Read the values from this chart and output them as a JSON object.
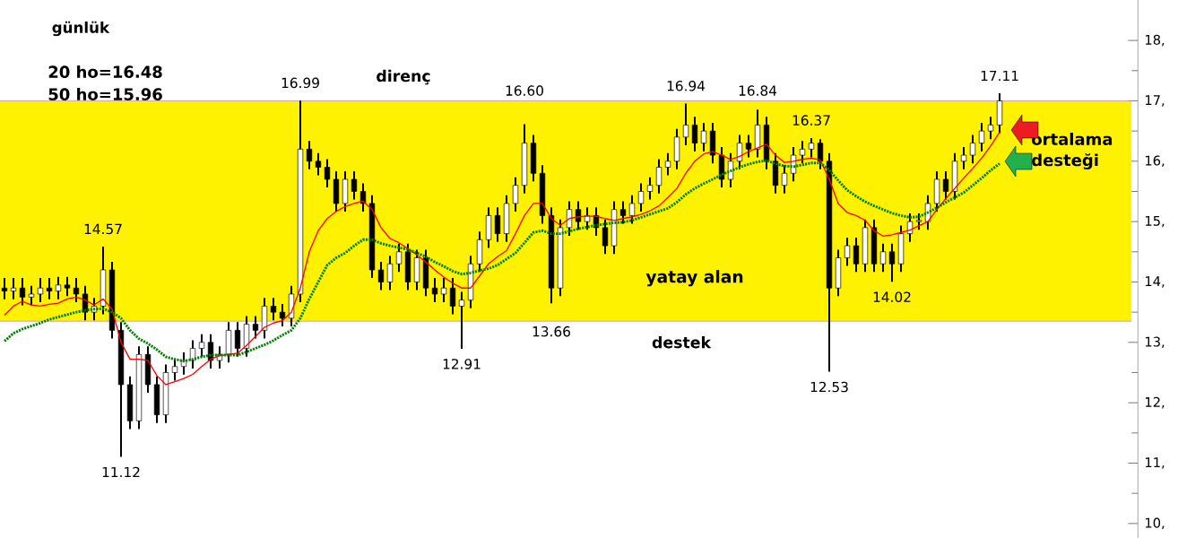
{
  "chart_data": {
    "type": "candlestick",
    "title": "günlük",
    "categories": [
      null,
      null,
      null,
      null,
      null,
      null,
      null,
      null,
      null,
      null,
      null,
      null,
      null,
      null,
      null,
      null,
      null,
      null,
      null,
      null,
      null,
      null,
      null,
      null,
      null,
      null,
      null,
      null,
      null,
      null,
      null,
      null,
      null,
      null,
      null,
      null,
      null,
      null,
      null,
      null,
      null,
      null,
      null,
      null,
      null,
      null,
      null,
      null,
      null,
      null,
      null,
      null,
      null,
      null,
      null,
      null,
      null,
      null,
      null,
      null,
      null,
      null,
      null,
      null,
      null,
      null,
      null,
      null,
      null,
      null,
      null,
      null,
      null,
      null,
      null,
      null,
      null,
      null,
      null,
      null,
      null,
      null,
      null,
      null,
      null,
      null,
      null,
      null,
      null,
      null,
      null,
      null,
      null,
      null,
      null,
      null,
      null,
      null,
      null,
      null,
      null,
      null,
      null,
      null,
      null,
      null,
      null,
      null,
      null,
      null,
      null,
      null
    ],
    "ohlc": [
      [
        13.9,
        14.05,
        13.73,
        13.85
      ],
      [
        13.85,
        14.05,
        13.73,
        13.9
      ],
      [
        13.9,
        14.05,
        13.63,
        13.75
      ],
      [
        13.75,
        13.92,
        13.63,
        13.8
      ],
      [
        13.8,
        14.05,
        13.68,
        13.9
      ],
      [
        13.9,
        14.05,
        13.73,
        13.85
      ],
      [
        13.85,
        14.07,
        13.73,
        13.95
      ],
      [
        13.95,
        14.07,
        13.78,
        13.9
      ],
      [
        13.9,
        14.05,
        13.68,
        13.8
      ],
      [
        13.8,
        13.92,
        13.38,
        13.5
      ],
      [
        13.5,
        13.72,
        13.38,
        13.6
      ],
      [
        13.6,
        14.57,
        13.48,
        14.2
      ],
      [
        14.2,
        14.32,
        13.08,
        13.2
      ],
      [
        13.2,
        13.32,
        11.12,
        12.3
      ],
      [
        12.3,
        12.42,
        11.58,
        11.7
      ],
      [
        11.7,
        12.92,
        11.58,
        12.8
      ],
      [
        12.8,
        12.92,
        12.18,
        12.3
      ],
      [
        12.3,
        12.42,
        11.68,
        11.8
      ],
      [
        11.8,
        12.62,
        11.68,
        12.5
      ],
      [
        12.5,
        12.72,
        12.38,
        12.6
      ],
      [
        12.6,
        12.82,
        12.48,
        12.7
      ],
      [
        12.7,
        13.02,
        12.58,
        12.9
      ],
      [
        12.9,
        13.12,
        12.78,
        13.0
      ],
      [
        13.0,
        13.12,
        12.58,
        12.7
      ],
      [
        12.7,
        12.92,
        12.58,
        12.8
      ],
      [
        12.8,
        13.32,
        12.68,
        13.2
      ],
      [
        13.2,
        13.32,
        12.78,
        12.9
      ],
      [
        12.9,
        13.42,
        12.78,
        13.3
      ],
      [
        13.3,
        13.42,
        13.08,
        13.2
      ],
      [
        13.2,
        13.72,
        13.08,
        13.6
      ],
      [
        13.6,
        13.72,
        13.38,
        13.5
      ],
      [
        13.5,
        13.62,
        13.28,
        13.4
      ],
      [
        13.4,
        13.92,
        13.28,
        13.8
      ],
      [
        13.8,
        16.99,
        13.68,
        16.2
      ],
      [
        16.2,
        16.32,
        15.88,
        16.0
      ],
      [
        16.0,
        16.12,
        15.78,
        15.9
      ],
      [
        15.9,
        16.02,
        15.58,
        15.7
      ],
      [
        15.7,
        15.82,
        15.18,
        15.3
      ],
      [
        15.3,
        15.82,
        15.18,
        15.7
      ],
      [
        15.7,
        15.82,
        15.38,
        15.5
      ],
      [
        15.5,
        15.62,
        15.18,
        15.3
      ],
      [
        15.3,
        15.42,
        14.08,
        14.2
      ],
      [
        14.2,
        14.32,
        13.88,
        14.0
      ],
      [
        14.0,
        14.42,
        13.88,
        14.3
      ],
      [
        14.3,
        14.62,
        14.18,
        14.5
      ],
      [
        14.5,
        14.62,
        13.88,
        14.0
      ],
      [
        14.0,
        14.52,
        13.88,
        14.4
      ],
      [
        14.4,
        14.52,
        13.78,
        13.9
      ],
      [
        13.9,
        14.05,
        13.68,
        13.8
      ],
      [
        13.8,
        14.05,
        13.68,
        13.9
      ],
      [
        13.9,
        14.05,
        13.48,
        13.6
      ],
      [
        13.6,
        13.82,
        12.91,
        13.7
      ],
      [
        13.7,
        14.42,
        13.58,
        14.3
      ],
      [
        14.3,
        14.82,
        14.18,
        14.7
      ],
      [
        14.7,
        15.22,
        14.58,
        15.1
      ],
      [
        15.1,
        15.22,
        14.68,
        14.8
      ],
      [
        14.8,
        15.42,
        14.68,
        15.3
      ],
      [
        15.3,
        15.72,
        15.18,
        15.6
      ],
      [
        15.6,
        16.6,
        15.48,
        16.3
      ],
      [
        16.3,
        16.42,
        15.68,
        15.8
      ],
      [
        15.8,
        15.92,
        14.98,
        15.1
      ],
      [
        15.1,
        15.22,
        13.66,
        13.9
      ],
      [
        13.9,
        15.02,
        13.78,
        14.9
      ],
      [
        14.9,
        15.32,
        14.78,
        15.2
      ],
      [
        15.2,
        15.32,
        14.88,
        15.0
      ],
      [
        15.0,
        15.22,
        14.88,
        15.1
      ],
      [
        15.1,
        15.22,
        14.78,
        14.9
      ],
      [
        14.9,
        15.02,
        14.48,
        14.6
      ],
      [
        14.6,
        15.32,
        14.48,
        15.2
      ],
      [
        15.2,
        15.32,
        14.98,
        15.1
      ],
      [
        15.1,
        15.42,
        14.98,
        15.3
      ],
      [
        15.3,
        15.62,
        15.18,
        15.5
      ],
      [
        15.5,
        15.72,
        15.38,
        15.6
      ],
      [
        15.6,
        16.02,
        15.48,
        15.9
      ],
      [
        15.9,
        16.12,
        15.78,
        16.0
      ],
      [
        16.0,
        16.52,
        15.88,
        16.4
      ],
      [
        16.4,
        16.94,
        16.28,
        16.6
      ],
      [
        16.6,
        16.72,
        16.18,
        16.3
      ],
      [
        16.3,
        16.62,
        16.18,
        16.5
      ],
      [
        16.5,
        16.62,
        15.98,
        16.1
      ],
      [
        16.1,
        16.22,
        15.58,
        15.7
      ],
      [
        15.7,
        16.12,
        15.58,
        16.0
      ],
      [
        16.0,
        16.42,
        15.88,
        16.3
      ],
      [
        16.3,
        16.42,
        16.08,
        16.2
      ],
      [
        16.2,
        16.84,
        16.08,
        16.6
      ],
      [
        16.6,
        16.72,
        15.88,
        16.0
      ],
      [
        16.0,
        16.12,
        15.48,
        15.6
      ],
      [
        15.6,
        15.92,
        15.48,
        15.8
      ],
      [
        15.8,
        16.22,
        15.68,
        16.1
      ],
      [
        16.1,
        16.32,
        15.98,
        16.2
      ],
      [
        16.2,
        16.37,
        16.08,
        16.3
      ],
      [
        16.3,
        16.35,
        15.88,
        16.0
      ],
      [
        16.0,
        16.12,
        12.53,
        13.9
      ],
      [
        13.9,
        14.52,
        13.78,
        14.4
      ],
      [
        14.4,
        14.72,
        14.28,
        14.6
      ],
      [
        14.6,
        14.72,
        14.18,
        14.3
      ],
      [
        14.3,
        15.02,
        14.18,
        14.9
      ],
      [
        14.9,
        15.02,
        14.18,
        14.3
      ],
      [
        14.3,
        14.62,
        14.18,
        14.5
      ],
      [
        14.5,
        14.62,
        14.02,
        14.3
      ],
      [
        14.3,
        14.92,
        14.18,
        14.8
      ],
      [
        14.8,
        15.12,
        14.68,
        15.0
      ],
      [
        15.0,
        15.12,
        14.88,
        15.0
      ],
      [
        15.0,
        15.42,
        14.88,
        15.3
      ],
      [
        15.3,
        15.82,
        15.18,
        15.7
      ],
      [
        15.7,
        15.82,
        15.38,
        15.5
      ],
      [
        15.5,
        16.12,
        15.38,
        16.0
      ],
      [
        16.0,
        16.22,
        15.88,
        16.1
      ],
      [
        16.1,
        16.42,
        15.98,
        16.3
      ],
      [
        16.3,
        16.62,
        16.18,
        16.5
      ],
      [
        16.5,
        16.72,
        16.38,
        16.6
      ],
      [
        16.6,
        17.11,
        16.48,
        17.0
      ]
    ],
    "series": [
      {
        "type": "line",
        "color": "#ff0000",
        "values": [
          13.45,
          13.6,
          13.68,
          13.62,
          13.6,
          13.63,
          13.65,
          13.72,
          13.75,
          13.7,
          13.62,
          13.72,
          13.55,
          13.0,
          12.72,
          12.72,
          12.7,
          12.45,
          12.3,
          12.35,
          12.4,
          12.47,
          12.6,
          12.72,
          12.78,
          12.8,
          12.82,
          12.95,
          13.1,
          13.25,
          13.32,
          13.36,
          13.5,
          13.9,
          14.5,
          14.85,
          15.05,
          15.17,
          15.25,
          15.3,
          15.34,
          15.2,
          14.9,
          14.72,
          14.65,
          14.55,
          14.45,
          14.33,
          14.2,
          14.08,
          13.98,
          13.9,
          13.9,
          14.1,
          14.3,
          14.42,
          14.52,
          14.8,
          15.1,
          15.3,
          15.3,
          15.05,
          14.94,
          15.05,
          15.08,
          15.09,
          15.09,
          15.05,
          15.02,
          15.05,
          15.08,
          15.12,
          15.18,
          15.26,
          15.4,
          15.55,
          15.8,
          16.0,
          16.12,
          16.16,
          16.1,
          16.03,
          16.08,
          16.16,
          16.22,
          16.28,
          16.1,
          15.98,
          16.0,
          16.03,
          16.05,
          16.02,
          15.7,
          15.3,
          15.15,
          15.1,
          15.02,
          14.85,
          14.76,
          14.78,
          14.82,
          14.86,
          14.93,
          15.0,
          15.2,
          15.38,
          15.55,
          15.72,
          15.88,
          16.05,
          16.25,
          16.48
        ]
      },
      {
        "type": "line",
        "color": "#008000",
        "line_style": "dotted",
        "values": [
          13.02,
          13.15,
          13.22,
          13.27,
          13.32,
          13.38,
          13.42,
          13.46,
          13.5,
          13.53,
          13.55,
          13.56,
          13.5,
          13.4,
          13.2,
          13.06,
          12.98,
          12.88,
          12.76,
          12.72,
          12.69,
          12.72,
          12.76,
          12.79,
          12.79,
          12.79,
          12.79,
          12.84,
          12.9,
          12.96,
          13.03,
          13.12,
          13.2,
          13.4,
          13.72,
          14.0,
          14.28,
          14.4,
          14.48,
          14.6,
          14.7,
          14.7,
          14.64,
          14.6,
          14.57,
          14.54,
          14.48,
          14.42,
          14.33,
          14.26,
          14.18,
          14.13,
          14.15,
          14.19,
          14.22,
          14.28,
          14.38,
          14.48,
          14.65,
          14.82,
          14.85,
          14.8,
          14.8,
          14.84,
          14.88,
          14.91,
          14.94,
          14.96,
          14.98,
          14.99,
          15.02,
          15.07,
          15.12,
          15.17,
          15.22,
          15.32,
          15.45,
          15.55,
          15.63,
          15.7,
          15.78,
          15.84,
          15.9,
          15.95,
          15.99,
          16.01,
          15.96,
          15.92,
          15.91,
          15.94,
          15.97,
          15.97,
          15.85,
          15.68,
          15.52,
          15.42,
          15.33,
          15.26,
          15.2,
          15.14,
          15.1,
          15.07,
          15.08,
          15.15,
          15.23,
          15.32,
          15.4,
          15.48,
          15.6,
          15.72,
          15.85,
          15.96
        ]
      }
    ],
    "ylim": [
      9.76,
      18.67
    ],
    "yticks": [
      {
        "value": 10,
        "label": "10,"
      },
      {
        "value": 11,
        "label": "11,"
      },
      {
        "value": 12,
        "label": "12,"
      },
      {
        "value": 13,
        "label": "13,"
      },
      {
        "value": 14,
        "label": "14,"
      },
      {
        "value": 15,
        "label": "15,"
      },
      {
        "value": 16,
        "label": "16,"
      },
      {
        "value": 17,
        "label": "17,"
      },
      {
        "value": 18,
        "label": "18,"
      }
    ],
    "tick_labels": "y",
    "bands": [
      {
        "axis": "y",
        "from": 13.35,
        "to": 17.0,
        "label": "yatay alan",
        "color": "#fff200"
      }
    ],
    "ref_lines": [
      {
        "axis": "y",
        "value": 17.0,
        "label": "direnç",
        "color": "#a060c0"
      },
      {
        "axis": "y",
        "value": 13.35,
        "label": "destek",
        "color": "#a060c0"
      }
    ],
    "annotations": [
      "20 ho=16.48",
      "50 ho=15.96",
      "ortalama",
      "desteği",
      {
        "text": "14.57",
        "y": 14.57
      },
      {
        "text": "11.12",
        "y": 11.12
      },
      {
        "text": "16.99",
        "y": 16.99
      },
      {
        "text": "12.91",
        "y": 12.91
      },
      {
        "text": "16.60",
        "y": 16.6
      },
      {
        "text": "13.66",
        "y": 13.66
      },
      {
        "text": "16.94",
        "y": 16.94
      },
      {
        "text": "16.84",
        "y": 16.84
      },
      {
        "text": "16.37",
        "y": 16.37
      },
      {
        "text": "12.53",
        "y": 12.53
      },
      {
        "text": "14.02",
        "y": 14.02
      },
      {
        "text": "17.11",
        "y": 17.11
      }
    ]
  }
}
